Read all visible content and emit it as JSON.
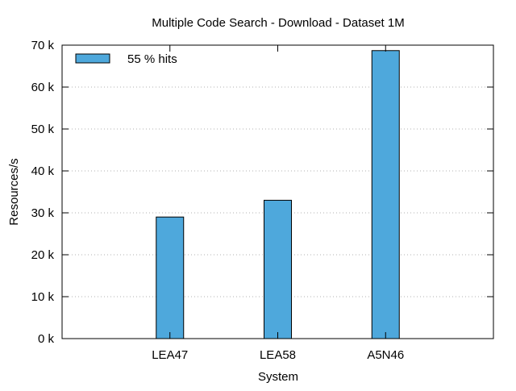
{
  "chart_data": {
    "type": "bar",
    "title": "Multiple Code Search - Download - Dataset 1M",
    "xlabel": "System",
    "ylabel": "Resources/s",
    "categories": [
      "LEA47",
      "LEA58",
      "A5N46"
    ],
    "series": [
      {
        "name": "55 % hits",
        "values": [
          29000,
          33000,
          68700
        ],
        "color": "#4ea8dc"
      }
    ],
    "ylim": [
      0,
      70000
    ],
    "yticks": [
      0,
      10000,
      20000,
      30000,
      40000,
      50000,
      60000,
      70000
    ],
    "ytick_labels": [
      "0 k",
      "10 k",
      "20 k",
      "30 k",
      "40 k",
      "50 k",
      "60 k",
      "70 k"
    ],
    "grid": "horizontal dotted",
    "legend_position": "top-left"
  }
}
